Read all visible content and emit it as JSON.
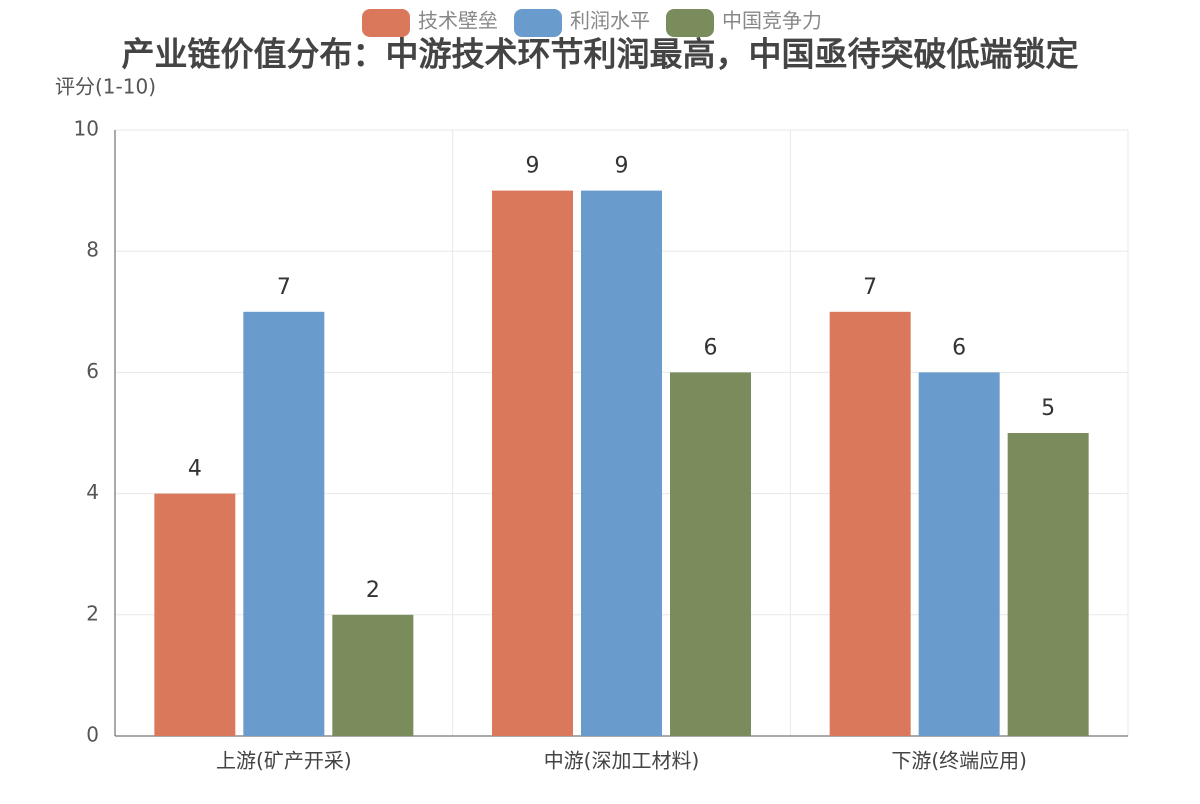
{
  "chart_data": {
    "type": "bar",
    "title": "产业链价值分布：中游技术环节利润最高，中国亟待突破低端锁定",
    "y_label": "评分(1-10)",
    "categories": [
      "上游(矿产开采)",
      "中游(深加工材料)",
      "下游(终端应用)"
    ],
    "series": [
      {
        "name": "技术壁垒",
        "color": "#d9785a",
        "values": [
          4,
          9,
          7
        ]
      },
      {
        "name": "利润水平",
        "color": "#6a9bcd",
        "values": [
          7,
          9,
          6
        ]
      },
      {
        "name": "中国竞争力",
        "color": "#7a8c5c",
        "values": [
          2,
          6,
          5
        ]
      }
    ],
    "ylim": [
      0,
      10
    ],
    "yticks": [
      0,
      2,
      4,
      6,
      8,
      10
    ],
    "grid": true,
    "legend": "top"
  }
}
